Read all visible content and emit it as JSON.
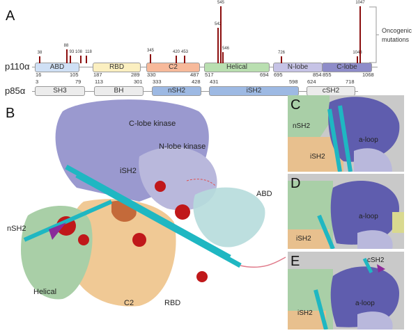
{
  "panel_a": {
    "label": "A",
    "p110": {
      "name": "p110α",
      "domains": [
        {
          "name": "ABD",
          "start": "16",
          "end": "105",
          "color": "#cfe0f5"
        },
        {
          "name": "RBD",
          "start": "187",
          "end": "289",
          "color": "#fbefc0"
        },
        {
          "name": "C2",
          "start": "330",
          "end": "487",
          "color": "#f7b99a"
        },
        {
          "name": "Helical",
          "start": "517",
          "end": "694",
          "color": "#b9dfb0"
        },
        {
          "name": "N-lobe",
          "start": "695",
          "end": "854",
          "color": "#c6c3e6"
        },
        {
          "name": "C-lobe",
          "start": "855",
          "end": "1068",
          "color": "#8e8cc9"
        }
      ],
      "mutations": [
        {
          "pos": "38",
          "relative_frequency": 0.12
        },
        {
          "pos": "88",
          "relative_frequency": 0.24
        },
        {
          "pos": "93",
          "relative_frequency": 0.13
        },
        {
          "pos": "108",
          "relative_frequency": 0.13
        },
        {
          "pos": "118",
          "relative_frequency": 0.14
        },
        {
          "pos": "345",
          "relative_frequency": 0.16
        },
        {
          "pos": "420",
          "relative_frequency": 0.14
        },
        {
          "pos": "453",
          "relative_frequency": 0.13
        },
        {
          "pos": "542",
          "relative_frequency": 0.62
        },
        {
          "pos": "545",
          "relative_frequency": 1.0
        },
        {
          "pos": "546",
          "relative_frequency": 0.2
        },
        {
          "pos": "726",
          "relative_frequency": 0.12
        },
        {
          "pos": "1043",
          "relative_frequency": 0.12
        },
        {
          "pos": "1047",
          "relative_frequency": 1.0
        }
      ],
      "mutation_color": "#8b0d0d"
    },
    "p85": {
      "name": "p85α",
      "domains": [
        {
          "name": "SH3",
          "start": "3",
          "end": "79",
          "color": "#ececec"
        },
        {
          "name": "BH",
          "start": "113",
          "end": "301",
          "color": "#ececec"
        },
        {
          "name": "nSH2",
          "start": "333",
          "end": "428",
          "color": "#9db9e3"
        },
        {
          "name": "iSH2",
          "start": "431",
          "end": "598",
          "color": "#9db9e3"
        },
        {
          "name": "cSH2",
          "start": "624",
          "end": "718",
          "color": "#ececec"
        }
      ]
    },
    "bracket_label": "Oncogenic mutations"
  },
  "panel_b": {
    "label": "B",
    "labels": [
      "C-lobe kinase",
      "N-lobe kinase",
      "ABD",
      "iSH2",
      "nSH2",
      "Helical",
      "C2",
      "RBD"
    ]
  },
  "panel_c": {
    "label": "C",
    "labels": [
      "nSH2",
      "iSH2",
      "a-loop"
    ]
  },
  "panel_d": {
    "label": "D",
    "labels": [
      "iSH2",
      "a-loop"
    ]
  },
  "panel_e": {
    "label": "E",
    "labels": [
      "cSH2",
      "iSH2",
      "a-loop"
    ]
  }
}
